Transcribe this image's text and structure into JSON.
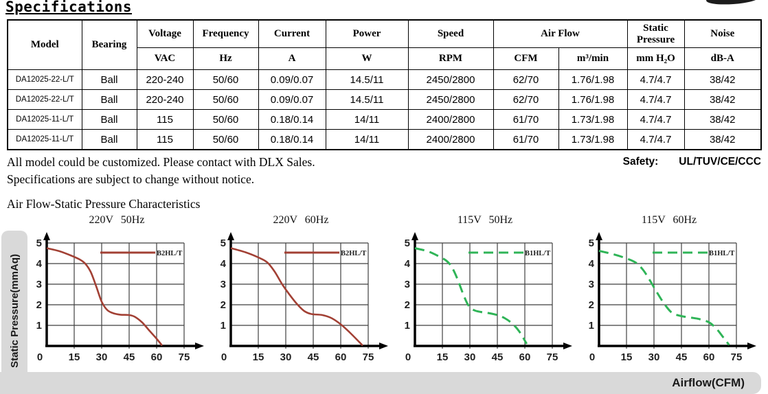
{
  "page": {
    "title": "Specifications"
  },
  "table": {
    "headers": {
      "model": "Model",
      "bearing": "Bearing",
      "voltage": "Voltage",
      "voltage_unit": "VAC",
      "frequency": "Frequency",
      "frequency_unit": "Hz",
      "current": "Current",
      "current_unit": "A",
      "power": "Power",
      "power_unit": "W",
      "speed": "Speed",
      "speed_unit": "RPM",
      "airflow": "Air Flow",
      "airflow_unit_cfm": "CFM",
      "airflow_unit_m3": "m³/min",
      "static_pressure": "Static Pressure",
      "static_pressure_unit": "mm H₂O",
      "noise": "Noise",
      "noise_unit": "dB-A"
    },
    "rows": [
      [
        "DA12025-22-L/T",
        "Ball",
        "220-240",
        "50/60",
        "0.09/0.07",
        "14.5/11",
        "2450/2800",
        "62/70",
        "1.76/1.98",
        "4.7/4.7",
        "38/42"
      ],
      [
        "DA12025-22-L/T",
        "Ball",
        "220-240",
        "50/60",
        "0.09/0.07",
        "14.5/11",
        "2450/2800",
        "62/70",
        "1.76/1.98",
        "4.7/4.7",
        "38/42"
      ],
      [
        "DA12025-11-L/T",
        "Ball",
        "115",
        "50/60",
        "0.18/0.14",
        "14/11",
        "2400/2800",
        "61/70",
        "1.73/1.98",
        "4.7/4.7",
        "38/42"
      ],
      [
        "DA12025-11-L/T",
        "Ball",
        "115",
        "50/60",
        "0.18/0.14",
        "14/11",
        "2400/2800",
        "61/70",
        "1.73/1.98",
        "4.7/4.7",
        "38/42"
      ]
    ]
  },
  "notes": {
    "line1": "All model could be customized. Please contact with DLX Sales.",
    "line2": "Specifications are subject to change without notice."
  },
  "safety": {
    "label": "Safety:",
    "value": "UL/TUV/CE/CCC"
  },
  "section": {
    "title": "Air Flow-Static Pressure Characteristics",
    "y_axis_label": "Static Pressure(mmAq)",
    "x_axis_label": "Airflow(CFM)"
  },
  "colors": {
    "red_curve": "#A24034",
    "green_curve": "#2FB457",
    "grid": "#3F3F3F",
    "axis": "#000000",
    "gray_panel": "#D9D9D9"
  },
  "chart_data": [
    {
      "type": "line",
      "title": "220V 50Hz",
      "xlabel": "Airflow(CFM)",
      "ylabel": "Static Pressure(mmAq)",
      "xlim": [
        0,
        75
      ],
      "ylim": [
        0,
        5
      ],
      "xticks": [
        0,
        15,
        30,
        45,
        60,
        75
      ],
      "yticks": [
        1,
        2,
        3,
        4,
        5
      ],
      "grid": true,
      "legend_position": "top-right",
      "series": [
        {
          "name": "B2HL/T",
          "style": "solid",
          "color": "#A24034",
          "points": [
            [
              0,
              4.75
            ],
            [
              7,
              4.6
            ],
            [
              13,
              4.4
            ],
            [
              18,
              4.2
            ],
            [
              21,
              4.0
            ],
            [
              24,
              3.6
            ],
            [
              27,
              2.9
            ],
            [
              30,
              2.15
            ],
            [
              33,
              1.75
            ],
            [
              36,
              1.6
            ],
            [
              40,
              1.52
            ],
            [
              45,
              1.5
            ],
            [
              48,
              1.42
            ],
            [
              52,
              1.15
            ],
            [
              56,
              0.75
            ],
            [
              60,
              0.35
            ],
            [
              63,
              0.02
            ]
          ]
        }
      ]
    },
    {
      "type": "line",
      "title": "220V 60Hz",
      "xlabel": "Airflow(CFM)",
      "ylabel": "Static Pressure(mmAq)",
      "xlim": [
        0,
        75
      ],
      "ylim": [
        0,
        5
      ],
      "xticks": [
        0,
        15,
        30,
        45,
        60,
        75
      ],
      "yticks": [
        1,
        2,
        3,
        4,
        5
      ],
      "grid": true,
      "legend_position": "top-right",
      "series": [
        {
          "name": "B2HL/T",
          "style": "solid",
          "color": "#A24034",
          "points": [
            [
              0,
              4.75
            ],
            [
              8,
              4.55
            ],
            [
              15,
              4.3
            ],
            [
              20,
              4.05
            ],
            [
              24,
              3.6
            ],
            [
              28,
              3.0
            ],
            [
              32,
              2.5
            ],
            [
              36,
              2.05
            ],
            [
              40,
              1.7
            ],
            [
              44,
              1.55
            ],
            [
              50,
              1.5
            ],
            [
              55,
              1.35
            ],
            [
              60,
              1.05
            ],
            [
              65,
              0.65
            ],
            [
              72,
              0.02
            ]
          ]
        }
      ]
    },
    {
      "type": "line",
      "title": "115V 50Hz",
      "xlabel": "Airflow(CFM)",
      "ylabel": "Static Pressure(mmAq)",
      "xlim": [
        0,
        75
      ],
      "ylim": [
        0,
        5
      ],
      "xticks": [
        0,
        15,
        30,
        45,
        60,
        75
      ],
      "yticks": [
        1,
        2,
        3,
        4,
        5
      ],
      "grid": true,
      "legend_position": "top-right",
      "series": [
        {
          "name": "B1HL/T",
          "style": "dashed",
          "color": "#2FB457",
          "points": [
            [
              0,
              4.75
            ],
            [
              7,
              4.6
            ],
            [
              12,
              4.4
            ],
            [
              17,
              4.15
            ],
            [
              20,
              3.85
            ],
            [
              23,
              3.3
            ],
            [
              26,
              2.6
            ],
            [
              29,
              2.0
            ],
            [
              32,
              1.75
            ],
            [
              36,
              1.65
            ],
            [
              40,
              1.6
            ],
            [
              45,
              1.5
            ],
            [
              49,
              1.35
            ],
            [
              53,
              1.1
            ],
            [
              57,
              0.7
            ],
            [
              61,
              0.1
            ]
          ]
        }
      ]
    },
    {
      "type": "line",
      "title": "115V 60Hz",
      "xlabel": "Airflow(CFM)",
      "ylabel": "Static Pressure(mmAq)",
      "xlim": [
        0,
        75
      ],
      "ylim": [
        0,
        5
      ],
      "xticks": [
        0,
        15,
        30,
        45,
        60,
        75
      ],
      "yticks": [
        1,
        2,
        3,
        4,
        5
      ],
      "grid": true,
      "legend_position": "top-right",
      "series": [
        {
          "name": "B1HL/T",
          "style": "dashed",
          "color": "#2FB457",
          "points": [
            [
              0,
              4.62
            ],
            [
              8,
              4.45
            ],
            [
              14,
              4.28
            ],
            [
              20,
              4.05
            ],
            [
              24,
              3.7
            ],
            [
              28,
              3.15
            ],
            [
              32,
              2.55
            ],
            [
              36,
              2.0
            ],
            [
              40,
              1.6
            ],
            [
              45,
              1.45
            ],
            [
              50,
              1.38
            ],
            [
              55,
              1.3
            ],
            [
              60,
              1.15
            ],
            [
              64,
              0.85
            ],
            [
              68,
              0.4
            ],
            [
              71,
              0.05
            ]
          ]
        }
      ]
    }
  ]
}
